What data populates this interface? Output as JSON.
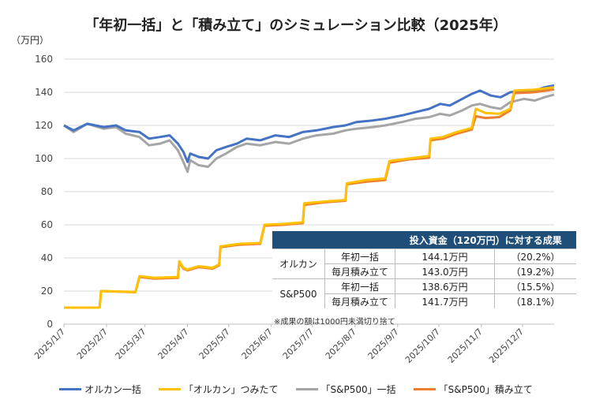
{
  "chart_data": {
    "type": "line",
    "title": "「年初一括」と「積み立て」のシミュレーション比較（2025年）",
    "ylabel": "（万円）",
    "ylim": [
      0,
      160
    ],
    "yticks": [
      0,
      20,
      40,
      60,
      80,
      100,
      120,
      140,
      160
    ],
    "xlim": [
      "2025-01-07",
      "2025-12-30"
    ],
    "xticks": [
      {
        "date": "2025-01-07",
        "label": "2025/1/7"
      },
      {
        "date": "2025-02-07",
        "label": "2025/2/7"
      },
      {
        "date": "2025-03-07",
        "label": "2025/3/7"
      },
      {
        "date": "2025-04-07",
        "label": "2025/4/7"
      },
      {
        "date": "2025-05-07",
        "label": "2025/5/7"
      },
      {
        "date": "2025-06-07",
        "label": "2025/6/7"
      },
      {
        "date": "2025-07-07",
        "label": "2025/7/7"
      },
      {
        "date": "2025-08-07",
        "label": "2025/8/7"
      },
      {
        "date": "2025-09-07",
        "label": "2025/9/7"
      },
      {
        "date": "2025-10-07",
        "label": "2025/10/7"
      },
      {
        "date": "2025-11-07",
        "label": "2025/11/7"
      },
      {
        "date": "2025-12-07",
        "label": "2025/12/7"
      }
    ],
    "grid": true,
    "legend_position": "bottom",
    "series": [
      {
        "name": "オルカン一括",
        "color": "#4472c4",
        "points": [
          [
            "2025-01-07",
            120
          ],
          [
            "2025-01-14",
            117
          ],
          [
            "2025-01-24",
            121
          ],
          [
            "2025-02-05",
            119
          ],
          [
            "2025-02-14",
            120
          ],
          [
            "2025-02-21",
            117
          ],
          [
            "2025-03-03",
            116
          ],
          [
            "2025-03-10",
            112
          ],
          [
            "2025-03-18",
            113
          ],
          [
            "2025-03-25",
            114
          ],
          [
            "2025-03-31",
            109
          ],
          [
            "2025-04-04",
            104
          ],
          [
            "2025-04-07",
            98
          ],
          [
            "2025-04-09",
            103
          ],
          [
            "2025-04-15",
            101
          ],
          [
            "2025-04-22",
            100
          ],
          [
            "2025-04-28",
            105
          ],
          [
            "2025-05-05",
            107
          ],
          [
            "2025-05-13",
            109
          ],
          [
            "2025-05-20",
            112
          ],
          [
            "2025-05-30",
            111
          ],
          [
            "2025-06-10",
            114
          ],
          [
            "2025-06-20",
            113
          ],
          [
            "2025-06-30",
            116
          ],
          [
            "2025-07-10",
            117
          ],
          [
            "2025-07-22",
            119
          ],
          [
            "2025-07-31",
            120
          ],
          [
            "2025-08-08",
            122
          ],
          [
            "2025-08-20",
            123
          ],
          [
            "2025-08-29",
            124
          ],
          [
            "2025-09-10",
            126
          ],
          [
            "2025-09-20",
            128
          ],
          [
            "2025-09-30",
            130
          ],
          [
            "2025-10-08",
            133
          ],
          [
            "2025-10-15",
            132
          ],
          [
            "2025-10-24",
            136
          ],
          [
            "2025-10-31",
            139
          ],
          [
            "2025-11-06",
            141
          ],
          [
            "2025-11-14",
            138
          ],
          [
            "2025-11-21",
            137
          ],
          [
            "2025-11-28",
            140
          ],
          [
            "2025-12-08",
            141
          ],
          [
            "2025-12-16",
            141
          ],
          [
            "2025-12-23",
            143
          ],
          [
            "2025-12-30",
            144.1
          ]
        ]
      },
      {
        "name": "「オルカン」つみたて",
        "color": "#ffc000",
        "points": [
          [
            "2025-01-07",
            10
          ],
          [
            "2025-02-02",
            10
          ],
          [
            "2025-02-03",
            20
          ],
          [
            "2025-02-28",
            19.5
          ],
          [
            "2025-03-03",
            29
          ],
          [
            "2025-03-14",
            28
          ],
          [
            "2025-03-31",
            28.5
          ],
          [
            "2025-04-01",
            38
          ],
          [
            "2025-04-04",
            34
          ],
          [
            "2025-04-07",
            33
          ],
          [
            "2025-04-15",
            35
          ],
          [
            "2025-04-25",
            34
          ],
          [
            "2025-04-30",
            36
          ],
          [
            "2025-05-01",
            47
          ],
          [
            "2025-05-15",
            48.5
          ],
          [
            "2025-05-30",
            49
          ],
          [
            "2025-06-02",
            60
          ],
          [
            "2025-06-16",
            60.5
          ],
          [
            "2025-06-30",
            61.5
          ],
          [
            "2025-07-01",
            73
          ],
          [
            "2025-07-15",
            74
          ],
          [
            "2025-07-31",
            75
          ],
          [
            "2025-08-01",
            85
          ],
          [
            "2025-08-15",
            87
          ],
          [
            "2025-08-29",
            88
          ],
          [
            "2025-09-01",
            98.5
          ],
          [
            "2025-09-15",
            100
          ],
          [
            "2025-09-30",
            101.5
          ],
          [
            "2025-10-01",
            112
          ],
          [
            "2025-10-10",
            113
          ],
          [
            "2025-10-20",
            116
          ],
          [
            "2025-10-31",
            118.5
          ],
          [
            "2025-11-03",
            130
          ],
          [
            "2025-11-10",
            127.5
          ],
          [
            "2025-11-20",
            127
          ],
          [
            "2025-11-28",
            130
          ],
          [
            "2025-12-01",
            141
          ],
          [
            "2025-12-15",
            141.5
          ],
          [
            "2025-12-30",
            143.0
          ]
        ]
      },
      {
        "name": "「S&P500」一括",
        "color": "#a5a5a5",
        "points": [
          [
            "2025-01-07",
            120
          ],
          [
            "2025-01-14",
            116
          ],
          [
            "2025-01-24",
            121
          ],
          [
            "2025-02-05",
            118
          ],
          [
            "2025-02-14",
            119
          ],
          [
            "2025-02-21",
            115
          ],
          [
            "2025-03-03",
            113
          ],
          [
            "2025-03-10",
            108
          ],
          [
            "2025-03-18",
            109
          ],
          [
            "2025-03-25",
            111
          ],
          [
            "2025-03-31",
            105
          ],
          [
            "2025-04-04",
            98
          ],
          [
            "2025-04-07",
            92
          ],
          [
            "2025-04-09",
            99
          ],
          [
            "2025-04-15",
            96
          ],
          [
            "2025-04-22",
            95
          ],
          [
            "2025-04-28",
            100
          ],
          [
            "2025-05-05",
            103
          ],
          [
            "2025-05-13",
            107
          ],
          [
            "2025-05-20",
            109
          ],
          [
            "2025-05-30",
            108
          ],
          [
            "2025-06-10",
            110
          ],
          [
            "2025-06-20",
            109
          ],
          [
            "2025-06-30",
            112
          ],
          [
            "2025-07-10",
            114
          ],
          [
            "2025-07-22",
            115
          ],
          [
            "2025-07-31",
            117
          ],
          [
            "2025-08-08",
            118
          ],
          [
            "2025-08-20",
            119
          ],
          [
            "2025-08-29",
            120
          ],
          [
            "2025-09-10",
            122
          ],
          [
            "2025-09-20",
            124
          ],
          [
            "2025-09-30",
            125
          ],
          [
            "2025-10-08",
            127
          ],
          [
            "2025-10-15",
            126
          ],
          [
            "2025-10-24",
            129
          ],
          [
            "2025-10-31",
            132
          ],
          [
            "2025-11-06",
            133
          ],
          [
            "2025-11-14",
            131
          ],
          [
            "2025-11-21",
            130
          ],
          [
            "2025-11-28",
            134
          ],
          [
            "2025-12-08",
            136
          ],
          [
            "2025-12-16",
            135
          ],
          [
            "2025-12-23",
            137
          ],
          [
            "2025-12-30",
            138.6
          ]
        ]
      },
      {
        "name": "「S&P500」積み立て",
        "color": "#ed7d31",
        "points": [
          [
            "2025-01-07",
            10
          ],
          [
            "2025-02-02",
            10
          ],
          [
            "2025-02-03",
            20
          ],
          [
            "2025-02-28",
            19.3
          ],
          [
            "2025-03-03",
            28.5
          ],
          [
            "2025-03-14",
            27.5
          ],
          [
            "2025-03-31",
            28
          ],
          [
            "2025-04-01",
            37.5
          ],
          [
            "2025-04-04",
            33.5
          ],
          [
            "2025-04-07",
            32.5
          ],
          [
            "2025-04-15",
            34.5
          ],
          [
            "2025-04-25",
            33.5
          ],
          [
            "2025-04-30",
            35.5
          ],
          [
            "2025-05-01",
            46.5
          ],
          [
            "2025-05-15",
            48
          ],
          [
            "2025-05-30",
            48.5
          ],
          [
            "2025-06-02",
            59.5
          ],
          [
            "2025-06-16",
            60
          ],
          [
            "2025-06-30",
            61
          ],
          [
            "2025-07-01",
            72
          ],
          [
            "2025-07-15",
            73.5
          ],
          [
            "2025-07-31",
            74.5
          ],
          [
            "2025-08-01",
            84.5
          ],
          [
            "2025-08-15",
            86
          ],
          [
            "2025-08-29",
            87
          ],
          [
            "2025-09-01",
            97.5
          ],
          [
            "2025-09-15",
            99.5
          ],
          [
            "2025-09-30",
            100.5
          ],
          [
            "2025-10-01",
            111
          ],
          [
            "2025-10-10",
            112
          ],
          [
            "2025-10-20",
            115
          ],
          [
            "2025-10-31",
            117.5
          ],
          [
            "2025-11-03",
            125.5
          ],
          [
            "2025-11-10",
            124.5
          ],
          [
            "2025-11-20",
            125
          ],
          [
            "2025-11-28",
            129
          ],
          [
            "2025-12-01",
            139.5
          ],
          [
            "2025-12-15",
            140
          ],
          [
            "2025-12-30",
            141.7
          ]
        ]
      }
    ]
  },
  "table": {
    "header": "投入資金（120万円）に対する成果",
    "groups": [
      {
        "name": "オルカン",
        "rows": [
          {
            "method": "年初一括",
            "value": "144.1万円",
            "pct": "（20.2%）"
          },
          {
            "method": "毎月積み立て",
            "value": "143.0万円",
            "pct": "（19.2%）"
          }
        ]
      },
      {
        "name": "S&P500",
        "rows": [
          {
            "method": "年初一括",
            "value": "138.6万円",
            "pct": "（15.5%）"
          },
          {
            "method": "毎月積み立て",
            "value": "141.7万円",
            "pct": "（18.1%）"
          }
        ]
      }
    ],
    "note": "※成果の額は1000円未満切り捨て"
  }
}
